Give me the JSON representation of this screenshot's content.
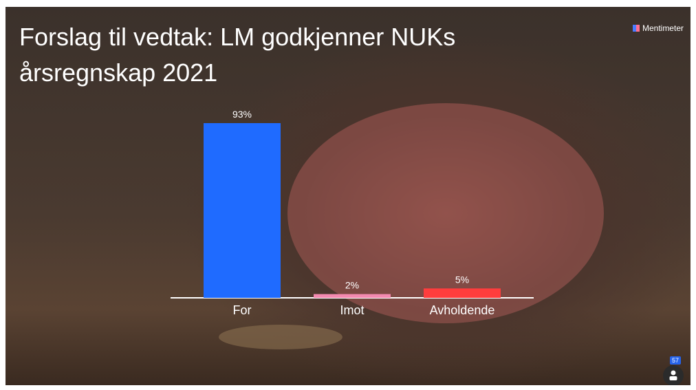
{
  "brand": "Mentimeter",
  "participants": 57,
  "chart_data": {
    "type": "bar",
    "title": "Forslag til vedtak: LM godkjenner NUKs årsregnskap 2021",
    "categories": [
      "For",
      "Imot",
      "Avholdende"
    ],
    "values": [
      93,
      2,
      5
    ],
    "value_labels": [
      "93%",
      "2%",
      "5%"
    ],
    "colors": [
      "#1f6bff",
      "#f38ab0",
      "#ff3d3d"
    ]
  }
}
